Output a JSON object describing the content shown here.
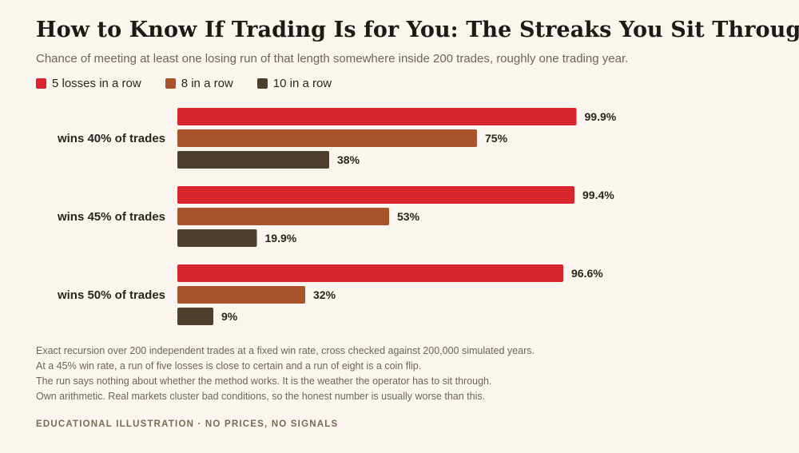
{
  "title": "How to Know If Trading Is for You: The Streaks You Sit Through",
  "subtitle": "Chance of meeting at least one losing run of that length somewhere inside 200 trades, roughly one trading year.",
  "colors": {
    "s1": "#d7262d",
    "s2": "#a8532c",
    "s3": "#4f3f2c",
    "background": "#faf6ef"
  },
  "chart_data": {
    "type": "bar",
    "orientation": "horizontal",
    "categories": [
      "wins 40% of trades",
      "wins 45% of trades",
      "wins 50% of trades"
    ],
    "series": [
      {
        "name": "5 losses in a row",
        "values": [
          99.9,
          99.4,
          96.6
        ],
        "labels": [
          "99.9%",
          "99.4%",
          "96.6%"
        ]
      },
      {
        "name": "8 in a row",
        "values": [
          75,
          53,
          32
        ],
        "labels": [
          "75%",
          "53%",
          "32%"
        ]
      },
      {
        "name": "10 in a row",
        "values": [
          38,
          19.9,
          9
        ],
        "labels": [
          "38%",
          "19.9%",
          "9%"
        ]
      }
    ],
    "xlim": [
      0,
      100
    ],
    "grid": false,
    "legend": "top-left"
  },
  "notes": [
    "Exact recursion over 200 independent trades at a fixed win rate, cross checked against 200,000 simulated years.",
    "At a 45% win rate, a run of five losses is close to certain and a run of eight is a coin flip.",
    "The run says nothing about whether the method works. It is the weather the operator has to sit through.",
    "Own arithmetic. Real markets cluster bad conditions, so the honest number is usually worse than this."
  ],
  "footer": "EDUCATIONAL ILLUSTRATION · NO PRICES, NO SIGNALS"
}
